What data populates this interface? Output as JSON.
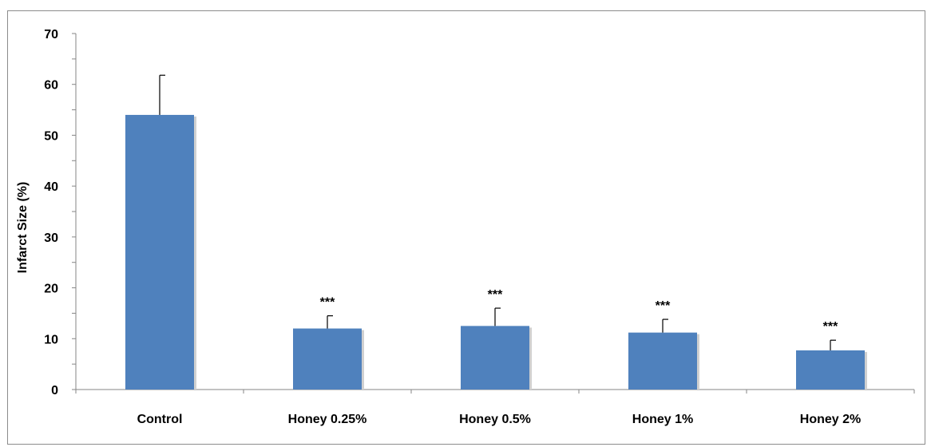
{
  "chart_data": {
    "type": "bar",
    "title": "",
    "xlabel": "",
    "ylabel": "Infarct Size (%)",
    "ylim": [
      0,
      70
    ],
    "yticks": [
      0,
      10,
      20,
      30,
      40,
      50,
      60,
      70
    ],
    "categories": [
      "Control",
      "Honey 0.25%",
      "Honey 0.5%",
      "Honey 1%",
      "Honey 2%"
    ],
    "values": [
      54,
      12,
      12.5,
      11.2,
      7.7
    ],
    "errors": [
      7.8,
      2.5,
      3.5,
      2.6,
      2.0
    ],
    "annotations": [
      "",
      "***",
      "***",
      "***",
      "***"
    ],
    "bar_color": "#4f81bd",
    "grid": false,
    "legend": "none"
  }
}
